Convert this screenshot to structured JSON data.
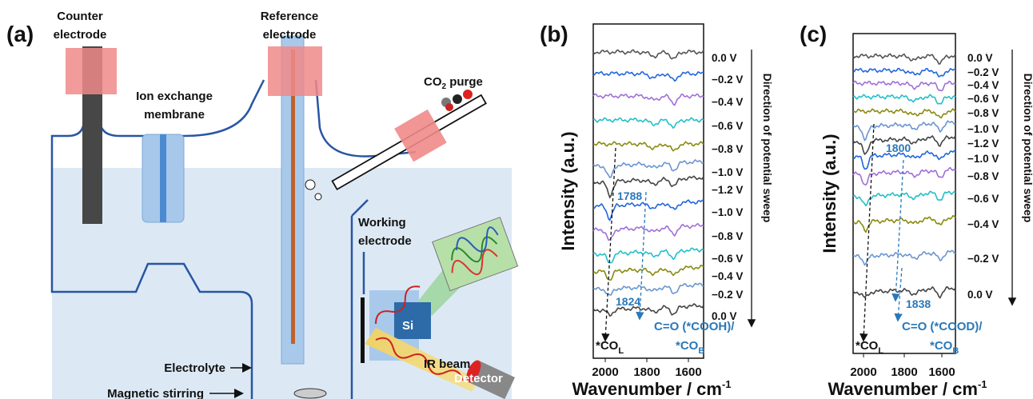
{
  "panel_a": {
    "label": "(a)",
    "counter_electrode": [
      "Counter",
      "electrode"
    ],
    "reference_electrode": [
      "Reference",
      "electrode"
    ],
    "ion_exchange_membrane": [
      "Ion exchange",
      "membrane"
    ],
    "co2_purge": {
      "base": "CO",
      "sub": "2",
      "rest": " purge"
    },
    "working_electrode": [
      "Working",
      "electrode"
    ],
    "si": "Si",
    "ir_beam": "IR beam",
    "detector": "Detector",
    "electrolyte": "Electrolyte",
    "magnetic_stirring": "Magnetic stirring"
  },
  "panel_b": {
    "label": "(b)",
    "y_label": "Intensity (a.u.)",
    "x_ticks": [
      2000,
      1800,
      1600
    ],
    "x_label": {
      "base": "Wavenumber / cm",
      "sup": "-1"
    },
    "potentials": [
      "0.0 V",
      "−0.2 V",
      "−0.4 V",
      "−0.6 V",
      "−0.8 V",
      "−1.0 V",
      "−1.2 V",
      "−1.0 V",
      "−0.8 V",
      "−0.6 V",
      "−0.4 V",
      "−0.2 V",
      "0.0 V"
    ],
    "sweep_label": "Direction of potential sweep",
    "peak_1": 1788,
    "peak_2": 1824,
    "band_1": "C=O (*COOH)/",
    "band_2": {
      "base": "*CO",
      "sub": "B"
    },
    "band_3": {
      "base": "*CO",
      "sub": "L"
    }
  },
  "panel_c": {
    "label": "(c)",
    "y_label": "Intensity (a.u.)",
    "x_ticks": [
      2000,
      1800,
      1600
    ],
    "x_label": {
      "base": "Wavenumber / cm",
      "sup": "-1"
    },
    "potentials": [
      "0.0 V",
      "−0.2 V",
      "−0.4 V",
      "−0.6 V",
      "−0.8 V",
      "−1.0 V",
      "−1.2 V",
      "−1.0 V",
      "−0.8 V",
      "−0.6 V",
      "−0.4 V",
      "−0.2 V",
      "0.0 V"
    ],
    "sweep_label": "Direction of potential sweep",
    "peak_1": 1800,
    "peak_2": 1838,
    "band_1": "C=O (*COOD)/",
    "band_2": {
      "base": "*CO",
      "sub": "B"
    },
    "band_3": {
      "base": "*CO",
      "sub": "L"
    }
  }
}
